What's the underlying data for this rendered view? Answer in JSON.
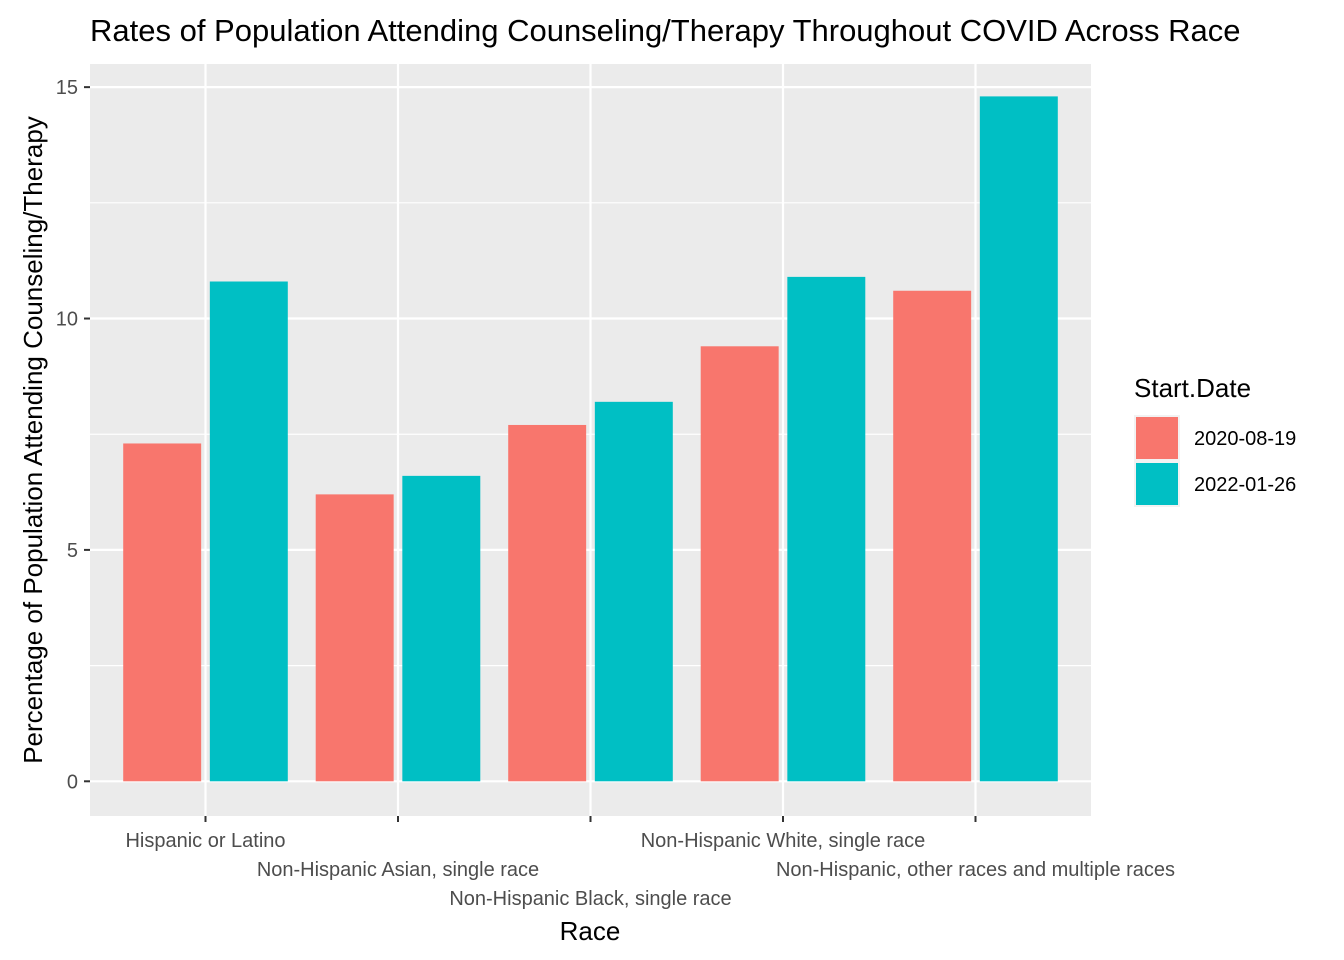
{
  "chart_data": {
    "type": "bar",
    "title": "Rates of Population Attending Counseling/Therapy Throughout COVID Across Race",
    "xlabel": "Race",
    "ylabel": "Percentage of Population Attending Counseling/Therapy",
    "categories": [
      "Hispanic or Latino",
      "Non-Hispanic Asian, single race",
      "Non-Hispanic Black, single race",
      "Non-Hispanic White, single race",
      "Non-Hispanic, other races and multiple races"
    ],
    "series": [
      {
        "name": "2020-08-19",
        "color": "#F8766D",
        "values": [
          7.3,
          6.2,
          7.7,
          9.4,
          10.6
        ]
      },
      {
        "name": "2022-01-26",
        "color": "#00BFC4",
        "values": [
          10.8,
          6.6,
          8.2,
          10.9,
          14.8
        ]
      }
    ],
    "ylim": [
      -0.75,
      15.5
    ],
    "yticks": [
      0,
      5,
      10,
      15
    ],
    "grid": true,
    "legend": {
      "title": "Start.Date",
      "position": "right"
    },
    "panel_background": "#EBEBEB",
    "grid_color": "#FFFFFF"
  }
}
